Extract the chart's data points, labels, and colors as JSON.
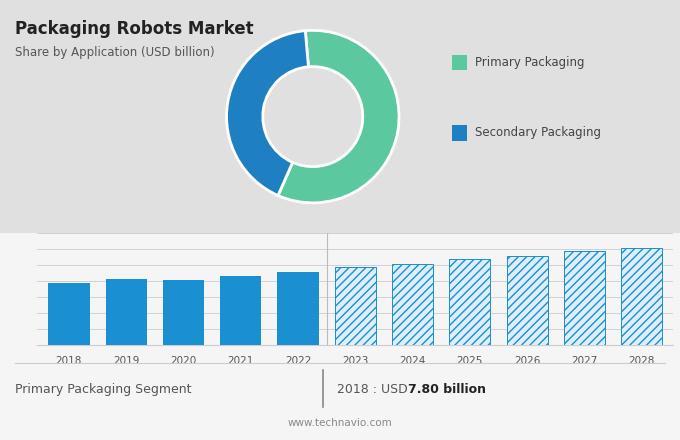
{
  "title": "Packaging Robots Market",
  "subtitle": "Share by Application (USD billion)",
  "bg_color_top": "#e0e0e0",
  "bg_color_bottom": "#f5f5f5",
  "donut_values": [
    58,
    42
  ],
  "donut_colors": [
    "#5bc8a0",
    "#1e7fc2"
  ],
  "donut_labels": [
    "Primary Packaging",
    "Secondary Packaging"
  ],
  "bar_years_solid": [
    2018,
    2019,
    2020,
    2021,
    2022
  ],
  "bar_values_solid": [
    7.8,
    8.3,
    8.2,
    8.7,
    9.1
  ],
  "bar_years_hatched": [
    2023,
    2024,
    2025,
    2026,
    2027,
    2028
  ],
  "bar_values_hatched": [
    9.8,
    10.2,
    10.8,
    11.2,
    11.8,
    12.2
  ],
  "bar_color_solid": "#1a8fd1",
  "bar_color_hatched_face": "#ddeeff",
  "bar_color_hatched_edge": "#1a8fd1",
  "footer_left": "Primary Packaging Segment",
  "footer_right_label": "2018 : USD ",
  "footer_right_bold": "7.80 billion",
  "footer_website": "www.technavio.com",
  "ylim": [
    0,
    14
  ],
  "ytick_lines": [
    2,
    4,
    6,
    8,
    10,
    12,
    14
  ]
}
